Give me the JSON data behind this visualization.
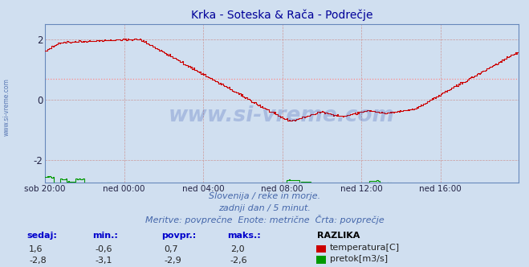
{
  "title": "Krka - Soteska & Rača - Podrečje",
  "title_color": "#000099",
  "background_color": "#d0dff0",
  "plot_bg_color": "#d0dff0",
  "xlabel_ticks": [
    "sob 20:00",
    "ned 00:00",
    "ned 04:00",
    "ned 08:00",
    "ned 12:00",
    "ned 16:00"
  ],
  "tick_positions": [
    0,
    72,
    144,
    216,
    288,
    360
  ],
  "total_points": 432,
  "ylim": [
    -2.75,
    2.5
  ],
  "yticks": [
    -2,
    0,
    2
  ],
  "grid_color": "#bbbbcc",
  "temp_color": "#cc0000",
  "flow_color": "#009900",
  "avg_temp_color": "#ff8888",
  "avg_flow_color": "#00dd00",
  "watermark_text": "www.si-vreme.com",
  "footer_line1": "Slovenija / reke in morje.",
  "footer_line2": "zadnji dan / 5 minut.",
  "footer_line3": "Meritve: povprečne  Enote: metrične  Črta: povprečje",
  "footer_color": "#4466aa",
  "legend_header": "RAZLIKA",
  "legend_label1": "temperatura[C]",
  "legend_label2": "pretok[m3/s]",
  "stats_headers": [
    "sedaj:",
    "min.:",
    "povpr.:",
    "maks.:"
  ],
  "stats_temp": [
    "1,6",
    "-0,6",
    "0,7",
    "2,0"
  ],
  "stats_flow": [
    "-2,8",
    "-3,1",
    "-2,9",
    "-2,6"
  ],
  "avg_temp": 0.7,
  "avg_flow": -2.9,
  "left_label": "www.si-vreme.com"
}
